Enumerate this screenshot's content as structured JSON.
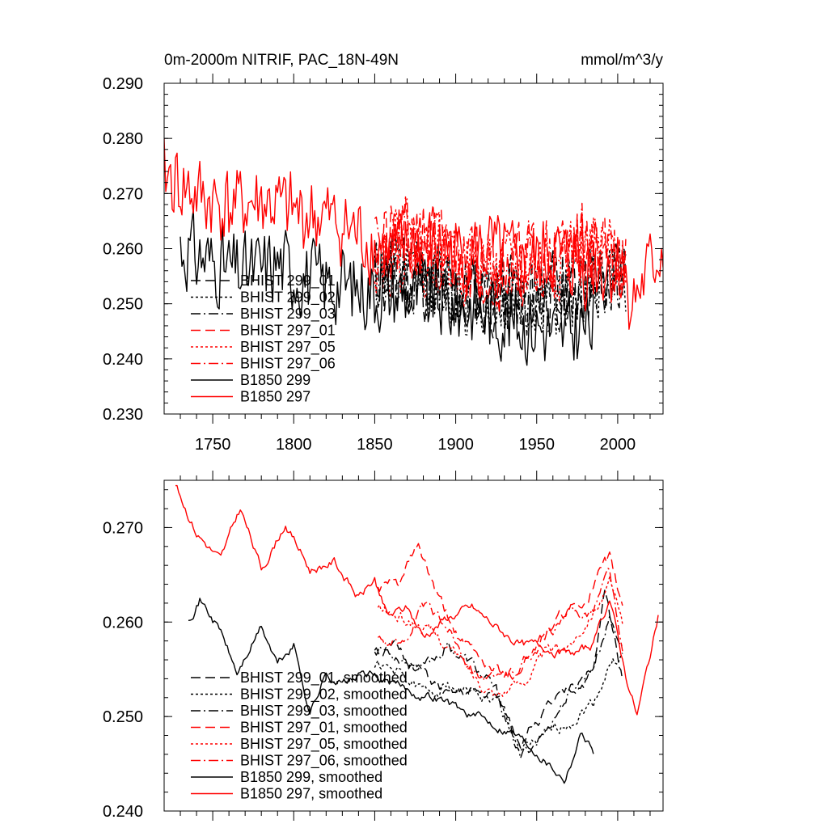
{
  "chart_data": [
    {
      "type": "line",
      "title": "0m-2000m NITRIF, PAC_18N-49N",
      "units_label": "mmol/m^3/y",
      "xlabel": "",
      "ylabel": "",
      "xlim": [
        1720,
        2028
      ],
      "ylim": [
        0.23,
        0.29
      ],
      "xticks": [
        1750,
        1800,
        1850,
        1900,
        1950,
        2000
      ],
      "xtick_labels": [
        "1750",
        "1800",
        "1850",
        "1900",
        "1950",
        "2000"
      ],
      "yticks": [
        0.23,
        0.24,
        0.25,
        0.26,
        0.27,
        0.28,
        0.29
      ],
      "ytick_labels": [
        "0.230",
        "0.240",
        "0.250",
        "0.260",
        "0.270",
        "0.280",
        "0.290"
      ],
      "legend_position": "lower-left",
      "series": [
        {
          "name": "BHIST 299_01",
          "color": "#000000",
          "dash": "dashed",
          "start": 1850,
          "end": 2005,
          "seed": 11,
          "values": [
            [
              1850,
              0.2555
            ],
            [
              1875,
              0.2545
            ],
            [
              1900,
              0.2525
            ],
            [
              1925,
              0.251
            ],
            [
              1950,
              0.2515
            ],
            [
              1975,
              0.2535
            ],
            [
              2005,
              0.2555
            ]
          ],
          "amp": 0.0085
        },
        {
          "name": "BHIST 299_02",
          "color": "#000000",
          "dash": "dotted",
          "start": 1850,
          "end": 2005,
          "seed": 12,
          "values": [
            [
              1850,
              0.2555
            ],
            [
              1875,
              0.254
            ],
            [
              1900,
              0.252
            ],
            [
              1925,
              0.2505
            ],
            [
              1950,
              0.2505
            ],
            [
              1975,
              0.2525
            ],
            [
              2005,
              0.256
            ]
          ],
          "amp": 0.0085
        },
        {
          "name": "BHIST 299_03",
          "color": "#000000",
          "dash": "dashdot",
          "start": 1850,
          "end": 2005,
          "seed": 13,
          "values": [
            [
              1850,
              0.2555
            ],
            [
              1875,
              0.255
            ],
            [
              1900,
              0.253
            ],
            [
              1925,
              0.2515
            ],
            [
              1950,
              0.2515
            ],
            [
              1975,
              0.2535
            ],
            [
              2005,
              0.2565
            ]
          ],
          "amp": 0.0085
        },
        {
          "name": "BHIST 297_01",
          "color": "#ff0000",
          "dash": "dashed",
          "start": 1850,
          "end": 2005,
          "seed": 21,
          "values": [
            [
              1850,
              0.2595
            ],
            [
              1875,
              0.2635
            ],
            [
              1900,
              0.2585
            ],
            [
              1925,
              0.2565
            ],
            [
              1950,
              0.2575
            ],
            [
              1975,
              0.2605
            ],
            [
              2005,
              0.2585
            ]
          ],
          "amp": 0.0085
        },
        {
          "name": "BHIST 297_05",
          "color": "#ff0000",
          "dash": "dotted",
          "start": 1850,
          "end": 2005,
          "seed": 22,
          "values": [
            [
              1850,
              0.2595
            ],
            [
              1875,
              0.2595
            ],
            [
              1900,
              0.2575
            ],
            [
              1925,
              0.2555
            ],
            [
              1950,
              0.2565
            ],
            [
              1975,
              0.2595
            ],
            [
              2005,
              0.258
            ]
          ],
          "amp": 0.0085
        },
        {
          "name": "BHIST 297_06",
          "color": "#ff0000",
          "dash": "dashdot",
          "start": 1850,
          "end": 2005,
          "seed": 23,
          "values": [
            [
              1850,
              0.2595
            ],
            [
              1875,
              0.2615
            ],
            [
              1900,
              0.2585
            ],
            [
              1925,
              0.2555
            ],
            [
              1950,
              0.2575
            ],
            [
              1975,
              0.2615
            ],
            [
              2005,
              0.2585
            ]
          ],
          "amp": 0.0085
        },
        {
          "name": "B1850 299",
          "color": "#000000",
          "dash": "solid",
          "start": 1730,
          "end": 1985,
          "seed": 31,
          "values": [
            [
              1730,
              0.2605
            ],
            [
              1750,
              0.2575
            ],
            [
              1770,
              0.2555
            ],
            [
              1790,
              0.2575
            ],
            [
              1810,
              0.2545
            ],
            [
              1830,
              0.2535
            ],
            [
              1850,
              0.2525
            ],
            [
              1870,
              0.252
            ],
            [
              1890,
              0.2505
            ],
            [
              1910,
              0.2495
            ],
            [
              1930,
              0.2475
            ],
            [
              1950,
              0.246
            ],
            [
              1965,
              0.2445
            ],
            [
              1985,
              0.2465
            ]
          ],
          "amp": 0.0085
        },
        {
          "name": "B1850 297",
          "color": "#ff0000",
          "dash": "solid",
          "start": 1720,
          "end": 2028,
          "seed": 41,
          "values": [
            [
              1720,
              0.2735
            ],
            [
              1740,
              0.2695
            ],
            [
              1760,
              0.2675
            ],
            [
              1780,
              0.2685
            ],
            [
              1800,
              0.2665
            ],
            [
              1820,
              0.2655
            ],
            [
              1840,
              0.2625
            ],
            [
              1860,
              0.259
            ],
            [
              1880,
              0.2605
            ],
            [
              1900,
              0.259
            ],
            [
              1920,
              0.2595
            ],
            [
              1940,
              0.257
            ],
            [
              1960,
              0.2585
            ],
            [
              1980,
              0.2565
            ],
            [
              2000,
              0.2565
            ],
            [
              2010,
              0.2505
            ],
            [
              2028,
              0.2605
            ]
          ],
          "amp": 0.0085
        }
      ]
    },
    {
      "type": "line",
      "title": "",
      "xlabel": "",
      "ylabel": "",
      "xlim": [
        1720,
        2028
      ],
      "ylim": [
        0.24,
        0.275
      ],
      "yticks": [
        0.24,
        0.25,
        0.26,
        0.27
      ],
      "ytick_labels": [
        "0.240",
        "0.250",
        "0.260",
        "0.270"
      ],
      "legend_position": "lower-left",
      "series": [
        {
          "name": "BHIST 299_01, smoothed",
          "color": "#000000",
          "dash": "dashed",
          "start": 1850,
          "end": 2003,
          "seed": 51,
          "values": [
            [
              1850,
              0.257
            ],
            [
              1865,
              0.257
            ],
            [
              1880,
              0.2545
            ],
            [
              1895,
              0.252
            ],
            [
              1910,
              0.2525
            ],
            [
              1925,
              0.252
            ],
            [
              1940,
              0.2475
            ],
            [
              1955,
              0.2505
            ],
            [
              1970,
              0.2525
            ],
            [
              1985,
              0.2545
            ],
            [
              1992,
              0.263
            ],
            [
              2003,
              0.2545
            ]
          ],
          "amp": 0.002
        },
        {
          "name": "BHIST 299_02, smoothed",
          "color": "#000000",
          "dash": "dotted",
          "start": 1850,
          "end": 2003,
          "seed": 52,
          "values": [
            [
              1850,
              0.2555
            ],
            [
              1865,
              0.2545
            ],
            [
              1880,
              0.2525
            ],
            [
              1895,
              0.2535
            ],
            [
              1910,
              0.2525
            ],
            [
              1925,
              0.2515
            ],
            [
              1940,
              0.2465
            ],
            [
              1955,
              0.2475
            ],
            [
              1970,
              0.2495
            ],
            [
              1985,
              0.2515
            ],
            [
              1995,
              0.2555
            ],
            [
              2003,
              0.2565
            ]
          ],
          "amp": 0.002
        },
        {
          "name": "BHIST 299_03, smoothed",
          "color": "#000000",
          "dash": "dashdot",
          "start": 1850,
          "end": 2003,
          "seed": 53,
          "values": [
            [
              1850,
              0.2575
            ],
            [
              1865,
              0.2565
            ],
            [
              1880,
              0.255
            ],
            [
              1895,
              0.2575
            ],
            [
              1910,
              0.2555
            ],
            [
              1925,
              0.2525
            ],
            [
              1940,
              0.2455
            ],
            [
              1955,
              0.2485
            ],
            [
              1970,
              0.2525
            ],
            [
              1985,
              0.2555
            ],
            [
              1995,
              0.2605
            ],
            [
              2003,
              0.2575
            ]
          ],
          "amp": 0.002
        },
        {
          "name": "BHIST 297_01, smoothed",
          "color": "#ff0000",
          "dash": "dashed",
          "start": 1852,
          "end": 2003,
          "seed": 61,
          "values": [
            [
              1852,
              0.2635
            ],
            [
              1865,
              0.264
            ],
            [
              1877,
              0.268
            ],
            [
              1890,
              0.262
            ],
            [
              1905,
              0.2575
            ],
            [
              1920,
              0.2555
            ],
            [
              1935,
              0.2545
            ],
            [
              1950,
              0.2575
            ],
            [
              1965,
              0.2605
            ],
            [
              1980,
              0.2625
            ],
            [
              1995,
              0.2665
            ],
            [
              2003,
              0.2615
            ]
          ],
          "amp": 0.002
        },
        {
          "name": "BHIST 297_05, smoothed",
          "color": "#ff0000",
          "dash": "dotted",
          "start": 1852,
          "end": 2003,
          "seed": 62,
          "values": [
            [
              1852,
              0.2615
            ],
            [
              1865,
              0.2605
            ],
            [
              1880,
              0.2595
            ],
            [
              1895,
              0.2575
            ],
            [
              1910,
              0.2545
            ],
            [
              1925,
              0.2525
            ],
            [
              1940,
              0.2535
            ],
            [
              1955,
              0.2565
            ],
            [
              1970,
              0.2575
            ],
            [
              1985,
              0.2615
            ],
            [
              1995,
              0.264
            ],
            [
              2003,
              0.2595
            ]
          ],
          "amp": 0.002
        },
        {
          "name": "BHIST 297_06, smoothed",
          "color": "#ff0000",
          "dash": "dashdot",
          "start": 1852,
          "end": 2003,
          "seed": 63,
          "values": [
            [
              1852,
              0.2585
            ],
            [
              1865,
              0.2575
            ],
            [
              1880,
              0.2615
            ],
            [
              1895,
              0.2595
            ],
            [
              1910,
              0.2555
            ],
            [
              1925,
              0.2535
            ],
            [
              1940,
              0.2555
            ],
            [
              1955,
              0.2585
            ],
            [
              1970,
              0.2605
            ],
            [
              1985,
              0.2615
            ],
            [
              1995,
              0.2655
            ],
            [
              2003,
              0.256
            ]
          ],
          "amp": 0.002
        },
        {
          "name": "B1850 299, smoothed",
          "color": "#000000",
          "dash": "solid",
          "start": 1735,
          "end": 1985,
          "seed": 71,
          "values": [
            [
              1735,
              0.2605
            ],
            [
              1742,
              0.2625
            ],
            [
              1755,
              0.259
            ],
            [
              1765,
              0.2545
            ],
            [
              1780,
              0.2595
            ],
            [
              1790,
              0.2555
            ],
            [
              1800,
              0.2575
            ],
            [
              1810,
              0.2505
            ],
            [
              1820,
              0.2545
            ],
            [
              1830,
              0.2535
            ],
            [
              1845,
              0.2545
            ],
            [
              1860,
              0.2535
            ],
            [
              1875,
              0.2525
            ],
            [
              1890,
              0.252
            ],
            [
              1905,
              0.2505
            ],
            [
              1920,
              0.2495
            ],
            [
              1935,
              0.2485
            ],
            [
              1950,
              0.2465
            ],
            [
              1967,
              0.2435
            ],
            [
              1978,
              0.2485
            ],
            [
              1985,
              0.2465
            ]
          ],
          "amp": 0.0015
        },
        {
          "name": "B1850 297, smoothed",
          "color": "#ff0000",
          "dash": "solid",
          "start": 1727,
          "end": 2025,
          "seed": 81,
          "values": [
            [
              1727,
              0.2745
            ],
            [
              1740,
              0.2695
            ],
            [
              1755,
              0.2665
            ],
            [
              1767,
              0.272
            ],
            [
              1780,
              0.2655
            ],
            [
              1795,
              0.2705
            ],
            [
              1810,
              0.2655
            ],
            [
              1825,
              0.2665
            ],
            [
              1840,
              0.2625
            ],
            [
              1850,
              0.2645
            ],
            [
              1858,
              0.2605
            ],
            [
              1870,
              0.2615
            ],
            [
              1880,
              0.2585
            ],
            [
              1895,
              0.2605
            ],
            [
              1910,
              0.2615
            ],
            [
              1925,
              0.2595
            ],
            [
              1940,
              0.2575
            ],
            [
              1955,
              0.2575
            ],
            [
              1970,
              0.2565
            ],
            [
              1985,
              0.2575
            ],
            [
              1995,
              0.2625
            ],
            [
              2005,
              0.2545
            ],
            [
              2012,
              0.2502
            ],
            [
              2020,
              0.2565
            ],
            [
              2025,
              0.2605
            ]
          ],
          "amp": 0.0015
        }
      ]
    }
  ]
}
